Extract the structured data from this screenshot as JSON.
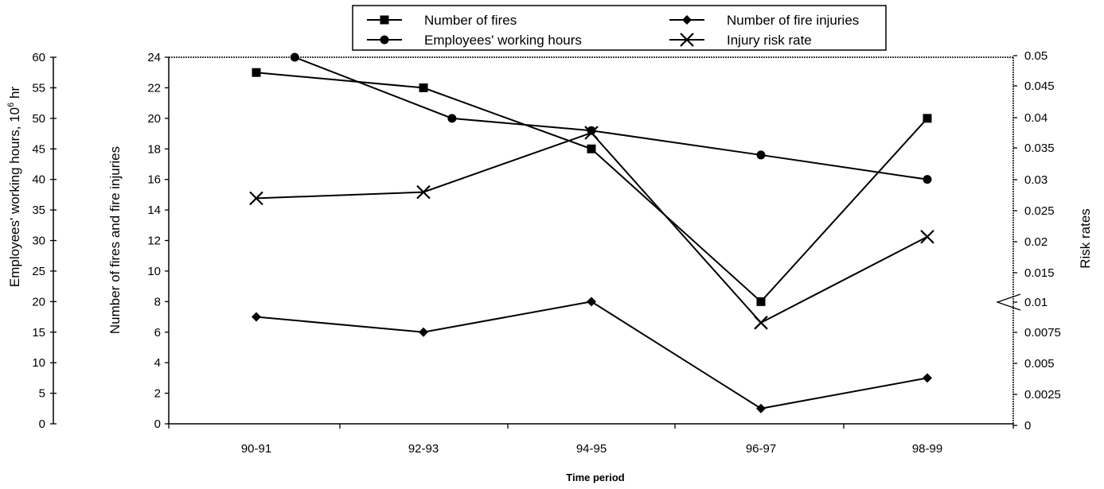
{
  "chart_data": {
    "type": "line",
    "xlabel": "Time period",
    "categories": [
      "90-91",
      "92-93",
      "94-95",
      "96-97",
      "98-99"
    ],
    "axes": {
      "left_outer": {
        "label_main": "Employees' working hours, 10",
        "label_sup": "6",
        "label_tail": " hr",
        "ylim": [
          0,
          60
        ],
        "ticks": [
          "0",
          "5",
          "10",
          "15",
          "20",
          "25",
          "30",
          "35",
          "40",
          "45",
          "50",
          "55",
          "60"
        ]
      },
      "left_inner": {
        "label": "Number of fires and fire injuries",
        "ylim": [
          0,
          24
        ],
        "ticks": [
          "0",
          "2",
          "4",
          "6",
          "8",
          "10",
          "12",
          "14",
          "16",
          "18",
          "20",
          "22",
          "24"
        ]
      },
      "right": {
        "label": "Risk rates",
        "ylim": [
          0,
          0.05
        ],
        "ticks": [
          "0",
          "0.0025",
          "0.005",
          "0.0075",
          "0.01",
          "0.015",
          "0.02",
          "0.025",
          "0.03",
          "0.035",
          "0.04",
          "0.045",
          "0.05"
        ]
      }
    },
    "series": [
      {
        "name": "Number of fires",
        "axis": "left_inner",
        "marker": "square",
        "x": [
          0,
          1,
          2,
          3,
          4
        ],
        "values": [
          23,
          22,
          18,
          8,
          20
        ]
      },
      {
        "name": "Number of fire injuries",
        "axis": "left_inner",
        "marker": "diamond",
        "x": [
          0,
          1,
          2,
          3,
          4
        ],
        "values": [
          7,
          6,
          8,
          1,
          3
        ]
      },
      {
        "name": "Employees' working hours",
        "axis": "left_outer",
        "marker": "circle",
        "x": [
          0.23,
          1.17,
          2.0,
          3.0,
          4.0
        ],
        "values": [
          60,
          50,
          48,
          44,
          40
        ]
      },
      {
        "name": "Injury risk rate",
        "axis": "right",
        "marker": "x",
        "x": [
          0,
          1,
          2,
          3,
          4
        ],
        "values": [
          0.027,
          0.028,
          0.0375,
          0.0083,
          0.0208
        ]
      }
    ],
    "legend": {
      "position": "top-center",
      "entries": [
        "Number of fires",
        "Number of fire injuries",
        "Employees' working hours",
        "Injury risk rate"
      ]
    },
    "grid": false
  }
}
